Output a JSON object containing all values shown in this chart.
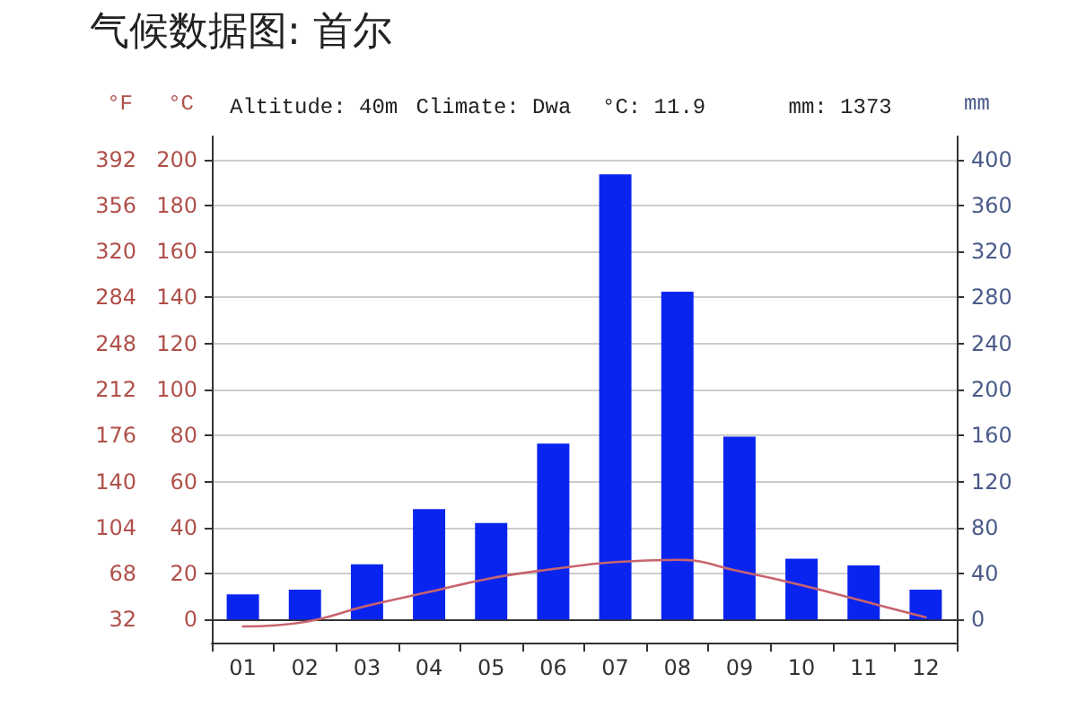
{
  "chart_data": {
    "type": "bar",
    "title": "气候数据图: 首尔",
    "annotations": [
      "Altitude: 40m",
      "Climate: Dwa",
      "°C: 11.9",
      "mm: 1373"
    ],
    "categories": [
      "01",
      "02",
      "03",
      "04",
      "05",
      "06",
      "07",
      "08",
      "09",
      "10",
      "11",
      "12"
    ],
    "series": [
      {
        "axis": "y2",
        "color": "#0a24f0",
        "values": [
          22,
          26,
          48,
          96,
          84,
          153,
          387,
          285,
          159,
          53,
          47,
          26
        ]
      },
      {
        "type": "line",
        "axis": "y",
        "color": "#c8646e",
        "values": [
          -3,
          -1,
          6,
          12,
          18,
          22,
          25,
          26,
          21,
          15,
          8,
          1
        ]
      }
    ],
    "ylabel": "°C",
    "y2label": "mm",
    "y3label": "°F",
    "ylim": [
      -10,
      210
    ],
    "yticks": [
      0,
      20,
      40,
      60,
      80,
      100,
      120,
      140,
      160,
      180,
      200
    ],
    "y2lim": [
      -20,
      420
    ],
    "y2ticks": [
      0,
      40,
      80,
      120,
      160,
      200,
      240,
      280,
      320,
      360,
      400
    ],
    "y3lim": [
      14,
      410
    ],
    "y3ticks": [
      32,
      68,
      104,
      140,
      176,
      212,
      248,
      284,
      320,
      356,
      392
    ],
    "grid": "y"
  }
}
